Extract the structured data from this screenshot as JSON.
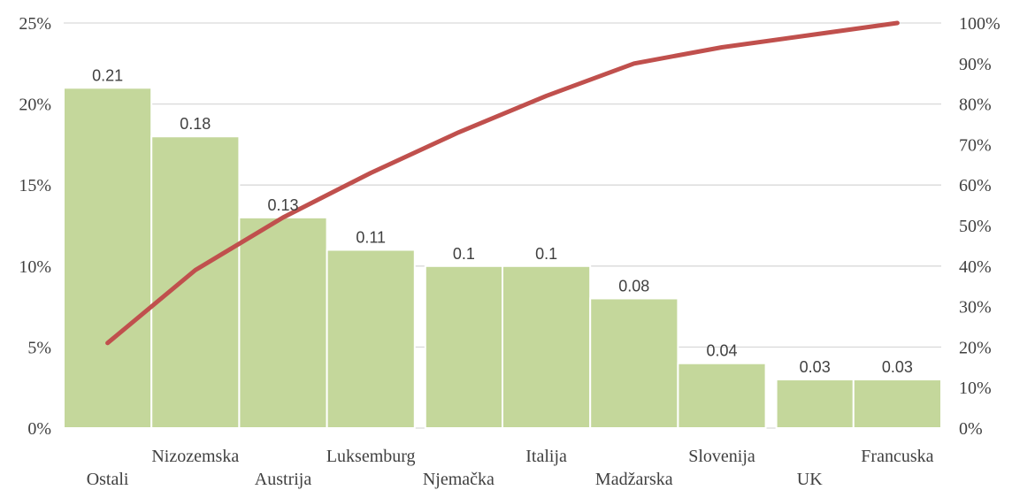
{
  "chart_data": {
    "type": "bar",
    "categories": [
      "Ostali",
      "Nizozemska",
      "Austrija",
      "Luksemburg",
      "Njemačka",
      "Italija",
      "Madžarska",
      "Slovenija",
      "UK",
      "Francuska"
    ],
    "series": [
      {
        "values": [
          0.21,
          0.18,
          0.13,
          0.11,
          0.1,
          0.1,
          0.08,
          0.04,
          0.03,
          0.03
        ],
        "data_labels": [
          "0.21",
          "0.18",
          "0.13",
          "0.11",
          "0.1",
          "0.1",
          "0.08",
          "0.04",
          "0.03",
          "0.03"
        ]
      },
      {
        "type": "line",
        "axis": "secondary",
        "values": [
          0.21,
          0.39,
          0.52,
          0.63,
          0.73,
          0.82,
          0.9,
          0.94,
          0.97,
          1.0
        ]
      }
    ],
    "y_axis": {
      "ylim": [
        0,
        0.25
      ],
      "ticks": [
        0,
        0.05,
        0.1,
        0.15,
        0.2,
        0.25
      ],
      "tick_labels": [
        "0%",
        "5%",
        "10%",
        "15%",
        "20%",
        "25%"
      ]
    },
    "y2_axis": {
      "ylim": [
        0,
        1.0
      ],
      "ticks": [
        0,
        0.1,
        0.2,
        0.3,
        0.4,
        0.5,
        0.6,
        0.7,
        0.8,
        0.9,
        1.0
      ],
      "tick_labels": [
        "0%",
        "10%",
        "20%",
        "30%",
        "40%",
        "50%",
        "60%",
        "70%",
        "80%",
        "90%",
        "100%"
      ]
    },
    "grid": true,
    "legend": "none",
    "colors": {
      "bars": "#c4d79b",
      "line": "#c0504d",
      "grid": "#d9d9d9",
      "text": "#404040"
    }
  }
}
